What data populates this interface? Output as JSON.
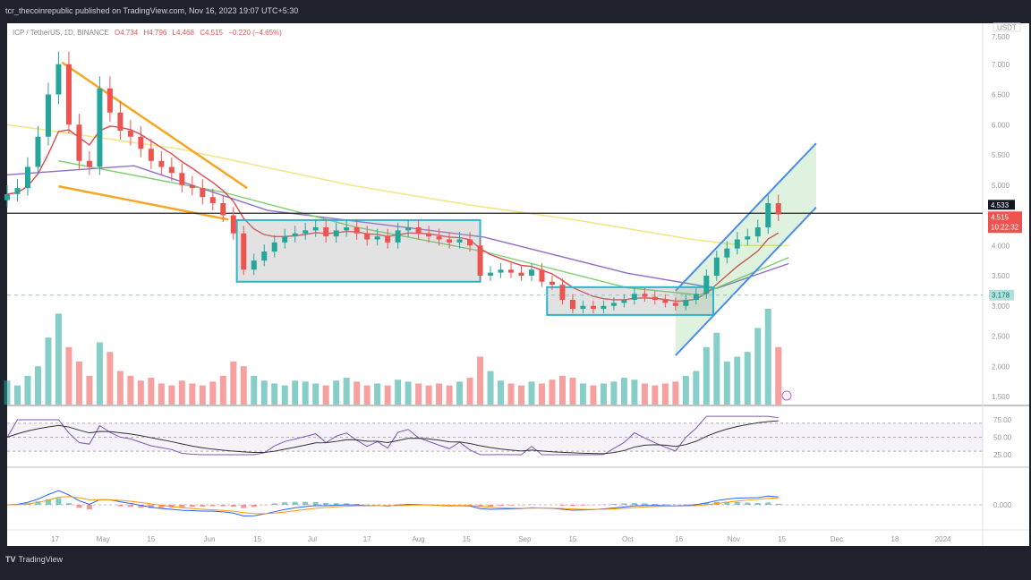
{
  "header": {
    "published": "tcr_thecoinrepublic published on TradingView.com, Nov 16, 2023 19:07 UTC+5:30"
  },
  "legend": {
    "symbol": "ICP / TetherUS, 1D, BINANCE",
    "open": "O4.734",
    "high": "H4.796",
    "low": "L4.468",
    "close": "C4.515",
    "change": "−0.220 (−4.65%)"
  },
  "footer": {
    "logo": "TV",
    "brand": "TradingView"
  },
  "colors": {
    "up": "#26a69a",
    "down": "#ef5350",
    "ema20": "#e0474c",
    "ma50": "#7ccf6b",
    "ma100": "#8e6fc9",
    "ma200": "#f3e58a",
    "rect": "#2fb4c8",
    "channel": "#4a8ee8",
    "wedge": "#f5a623"
  },
  "chart_data": {
    "type": "candlestick",
    "title": "ICP / TetherUS, 1D, BINANCE",
    "currency_label": "USDT",
    "interval_days_per_candle": 3,
    "start_date": "Apr 3",
    "price_ylim": [
      1.5,
      7.5
    ],
    "price_ticks": [
      "7.500",
      "7.000",
      "6.500",
      "6.000",
      "5.500",
      "5.000",
      "4.000",
      "3.500",
      "3.000",
      "2.500",
      "2.000",
      "1.500"
    ],
    "price_tick_values": [
      7.5,
      7.0,
      6.5,
      6.0,
      5.5,
      5.0,
      4.0,
      3.5,
      3.0,
      2.5,
      2.0,
      1.5
    ],
    "last_price_label": "4.515",
    "countdown_label": "10:22:32",
    "hline_label": "4.533",
    "hline_value": 4.533,
    "dashed_label": "3.178",
    "dashed_value": 3.178,
    "rsi_ticks": [
      "75.00",
      "50.00",
      "25.00"
    ],
    "rsi_tick_values": [
      75,
      50,
      25
    ],
    "macd_ticks": [
      "0.000"
    ],
    "x_ticks": [
      {
        "label": "17",
        "day": 14
      },
      {
        "label": "May",
        "day": 28
      },
      {
        "label": "15",
        "day": 42
      },
      {
        "label": "Jun",
        "day": 59
      },
      {
        "label": "15",
        "day": 73
      },
      {
        "label": "Jul",
        "day": 89
      },
      {
        "label": "17",
        "day": 105
      },
      {
        "label": "Aug",
        "day": 120
      },
      {
        "label": "15",
        "day": 134
      },
      {
        "label": "Sep",
        "day": 151
      },
      {
        "label": "15",
        "day": 165
      },
      {
        "label": "Oct",
        "day": 181
      },
      {
        "label": "16",
        "day": 196
      },
      {
        "label": "Nov",
        "day": 212
      },
      {
        "label": "15",
        "day": 226
      },
      {
        "label": "Dec",
        "day": 242
      },
      {
        "label": "18",
        "day": 259
      },
      {
        "label": "2024",
        "day": 273
      }
    ],
    "closes": [
      4.85,
      4.95,
      5.3,
      5.8,
      6.5,
      7.0,
      6.0,
      5.4,
      5.3,
      6.6,
      6.2,
      5.9,
      5.8,
      5.6,
      5.4,
      5.3,
      5.2,
      5.0,
      4.95,
      4.8,
      4.7,
      4.5,
      4.2,
      3.6,
      3.75,
      3.9,
      4.05,
      4.15,
      4.2,
      4.25,
      4.3,
      4.15,
      4.25,
      4.3,
      4.2,
      4.1,
      4.15,
      4.05,
      4.25,
      4.3,
      4.2,
      4.15,
      4.1,
      4.05,
      4.1,
      4.0,
      3.5,
      3.55,
      3.6,
      3.55,
      3.5,
      3.6,
      3.4,
      3.35,
      3.1,
      2.95,
      3.0,
      2.95,
      3.0,
      3.05,
      3.1,
      3.2,
      3.15,
      3.1,
      3.05,
      3.0,
      3.1,
      3.2,
      3.5,
      3.8,
      3.95,
      4.1,
      4.15,
      4.3,
      4.7,
      4.515
    ],
    "first_open": 4.75,
    "volumes": [
      25,
      20,
      30,
      40,
      70,
      95,
      60,
      45,
      30,
      65,
      55,
      35,
      30,
      25,
      28,
      22,
      20,
      25,
      22,
      20,
      24,
      30,
      45,
      40,
      30,
      25,
      22,
      20,
      25,
      24,
      22,
      20,
      25,
      28,
      24,
      20,
      22,
      20,
      26,
      24,
      22,
      20,
      22,
      20,
      24,
      28,
      50,
      35,
      25,
      22,
      20,
      24,
      22,
      26,
      30,
      28,
      22,
      20,
      22,
      24,
      28,
      26,
      22,
      20,
      22,
      24,
      30,
      35,
      60,
      75,
      45,
      50,
      55,
      80,
      100,
      60
    ],
    "moving_averages": {
      "ma200": [
        [
          0,
          6.0
        ],
        [
          50,
          5.6
        ],
        [
          100,
          5.0
        ],
        [
          136,
          4.66
        ],
        [
          165,
          4.43
        ],
        [
          200,
          4.1
        ],
        [
          215,
          4.0
        ],
        [
          228,
          4.0
        ]
      ],
      "ma100": [
        [
          0,
          5.17
        ],
        [
          37,
          5.32
        ],
        [
          76,
          4.58
        ],
        [
          139,
          4.14
        ],
        [
          181,
          3.54
        ],
        [
          207,
          3.29
        ],
        [
          228,
          3.7
        ]
      ],
      "ma50": [
        [
          15,
          5.4
        ],
        [
          63,
          4.88
        ],
        [
          102,
          4.3
        ],
        [
          139,
          3.9
        ],
        [
          181,
          3.3
        ],
        [
          202,
          3.18
        ],
        [
          228,
          3.8
        ]
      ]
    },
    "drawings": {
      "wedge_upper": [
        [
          16,
          7.03
        ],
        [
          70,
          4.95
        ]
      ],
      "wedge_lower": [
        [
          15,
          4.98
        ],
        [
          64.5,
          4.43
        ]
      ],
      "range_box_1": [
        [
          67,
          4.42
        ],
        [
          138,
          3.4
        ]
      ],
      "range_box_2": [
        [
          157.5,
          3.31
        ],
        [
          206,
          2.85
        ]
      ],
      "channel_lower": [
        [
          195,
          2.18
        ],
        [
          236,
          4.63
        ]
      ],
      "channel_upper": [
        [
          195,
          3.25
        ],
        [
          236,
          5.69
        ]
      ]
    }
  }
}
